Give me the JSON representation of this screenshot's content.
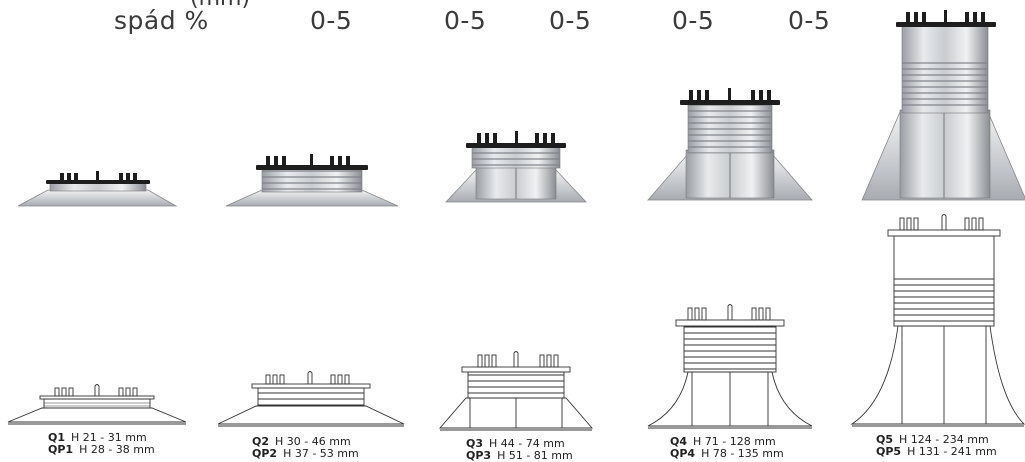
{
  "header": {
    "partial_top": "(mm)",
    "slope_label": "spád %",
    "slope_values": [
      "0-5",
      "0-5",
      "0-5",
      "0-5",
      "0-5"
    ]
  },
  "products": [
    {
      "code_a": "Q1",
      "range_a": "H 21 - 31 mm",
      "code_b": "QP1",
      "range_b": "H 28 - 38 mm"
    },
    {
      "code_a": "Q2",
      "range_a": "H 30 - 46 mm",
      "code_b": "QP2",
      "range_b": "H 37 - 53 mm"
    },
    {
      "code_a": "Q3",
      "range_a": "H 44 - 74 mm",
      "code_b": "QP3",
      "range_b": "H 51 - 81 mm"
    },
    {
      "code_a": "Q4",
      "range_a": "H 71 - 128 mm",
      "code_b": "QP4",
      "range_b": "H 78 - 135 mm"
    },
    {
      "code_a": "Q5",
      "range_a": "H 124 - 234 mm",
      "code_b": "QP5",
      "range_b": "H 131 - 241 mm"
    }
  ],
  "colors": {
    "body_light": "#e4e6e8",
    "body_dark": "#8c9096",
    "head_black": "#1e1e1e",
    "line": "#333333"
  }
}
